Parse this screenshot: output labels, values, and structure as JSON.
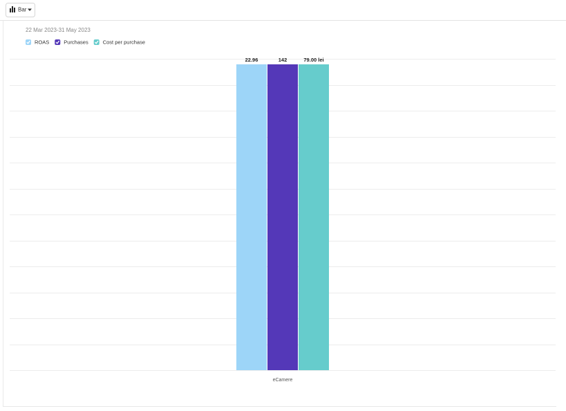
{
  "toolbar": {
    "chart_type_label": "Bar"
  },
  "chart_data": {
    "type": "bar",
    "date_range": "22 Mar 2023-31 May 2023",
    "categories": [
      "eCamere"
    ],
    "series": [
      {
        "name": "ROAS",
        "color": "#9dd5f8",
        "values": [
          22.96
        ]
      },
      {
        "name": "Purchases",
        "color": "#5438b8",
        "values": [
          142
        ]
      },
      {
        "name": "Cost per purchase",
        "color": "#66cccc",
        "values": [
          79.0
        ],
        "value_labels": [
          "79.00 lei"
        ]
      }
    ],
    "grid": true
  }
}
